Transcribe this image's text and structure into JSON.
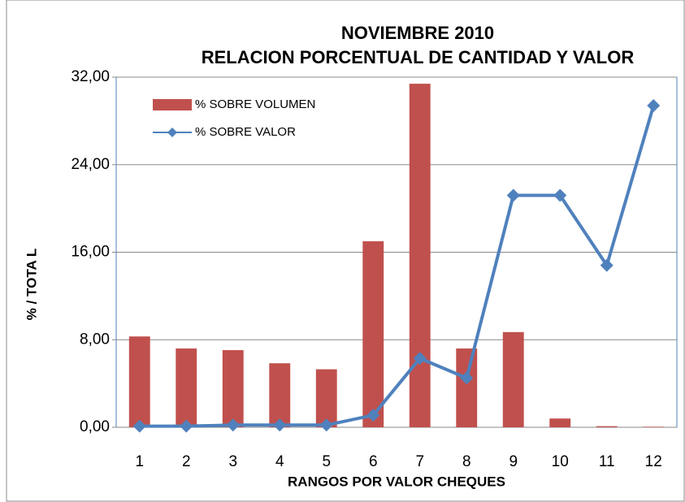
{
  "chart_data": {
    "type": "bar_line",
    "title": [
      "NOVIEMBRE  2010",
      "RELACION PORCENTUAL  DE CANTIDAD  Y VALOR"
    ],
    "x_label": "RANGOS POR VALOR CHEQUES",
    "y_label": "%  /    TOTA L",
    "categories": [
      "1",
      "2",
      "3",
      "4",
      "5",
      "6",
      "7",
      "8",
      "9",
      "10",
      "11",
      "12"
    ],
    "series": [
      {
        "name": "% SOBRE VOLUMEN",
        "type": "bar",
        "color": "#c0504d",
        "values": [
          8.3,
          7.2,
          7.05,
          5.85,
          5.3,
          17.0,
          31.4,
          7.2,
          8.7,
          0.8,
          0.1,
          0.05
        ]
      },
      {
        "name": "% SOBRE VALOR",
        "type": "line",
        "color": "#4f81bd",
        "values": [
          0.1,
          0.1,
          0.2,
          0.2,
          0.2,
          1.1,
          6.3,
          4.5,
          21.2,
          21.2,
          14.8,
          29.4
        ]
      }
    ],
    "ylim": [
      0,
      32
    ],
    "yticks": [
      {
        "value": 0,
        "label": "0,00"
      },
      {
        "value": 8,
        "label": "8,00"
      },
      {
        "value": 16,
        "label": "16,00"
      },
      {
        "value": 24,
        "label": "24,00"
      },
      {
        "value": 32,
        "label": "32,00"
      }
    ],
    "grid": true,
    "legend": "upper left"
  }
}
